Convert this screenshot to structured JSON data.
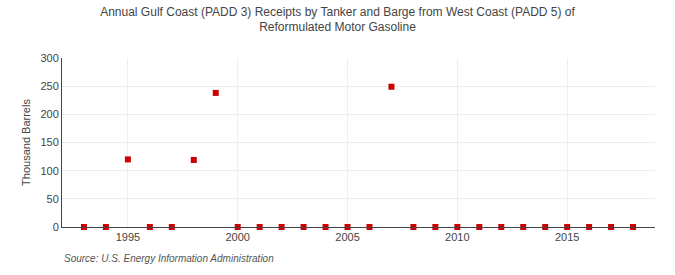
{
  "chart_data": {
    "type": "scatter",
    "title": "Annual Gulf Coast (PADD 3) Receipts by Tanker and Barge from West Coast (PADD 5) of\nReformulated Motor Gasoline",
    "ylabel": "Thousand Barrels",
    "source": "Source: U.S. Energy Information Administration",
    "x": [
      1993,
      1994,
      1995,
      1996,
      1997,
      1998,
      1999,
      2000,
      2001,
      2002,
      2003,
      2004,
      2005,
      2006,
      2007,
      2008,
      2009,
      2010,
      2011,
      2012,
      2013,
      2014,
      2015,
      2016,
      2017,
      2018
    ],
    "values": [
      0,
      0,
      120,
      0,
      0,
      119,
      238,
      0,
      0,
      0,
      0,
      0,
      0,
      0,
      249,
      0,
      0,
      0,
      0,
      0,
      0,
      0,
      0,
      0,
      0,
      0
    ],
    "color": "#cc0000",
    "marker": "square",
    "xlim": [
      1992,
      2019
    ],
    "ylim": [
      0,
      300
    ],
    "xticks": [
      1995,
      2000,
      2005,
      2010,
      2015
    ],
    "yticks": [
      0,
      50,
      100,
      150,
      200,
      250,
      300
    ],
    "grid": true
  }
}
